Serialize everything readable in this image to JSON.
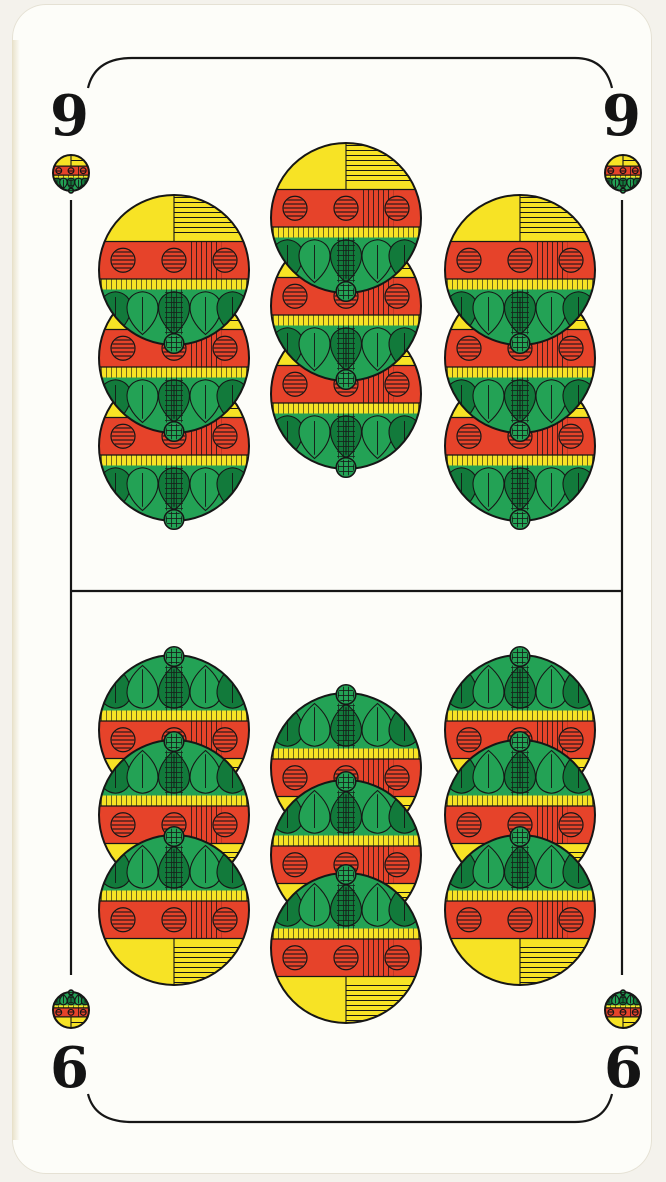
{
  "card": {
    "corner_top_left": "9",
    "corner_top_right": "9",
    "corner_bottom_left": "6",
    "corner_bottom_right": "6"
  },
  "suit": "bells",
  "colors": {
    "paper": "#fdfdf9",
    "outline": "#161616",
    "yellow": "#f7e325",
    "red": "#e6432a",
    "green": "#23a255",
    "dark_green": "#127a3b"
  }
}
